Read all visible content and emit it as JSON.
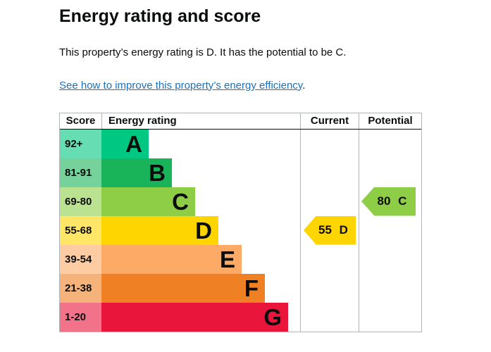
{
  "page": {
    "title": "Energy rating and score",
    "intro": "This property’s energy rating is D. It has the potential to be C.",
    "link_text": "See how to improve this property’s energy efficiency",
    "link_suffix": "."
  },
  "colors": {
    "text": "#0b0c0c",
    "link": "#1d70b8",
    "table_border": "#b1b4b6",
    "header_underline": "#0b0c0c"
  },
  "table": {
    "headers": [
      "Score",
      "Energy rating",
      "Current",
      "Potential"
    ]
  },
  "chart_data": {
    "type": "bar",
    "title": "Energy rating and score",
    "bands": [
      {
        "letter": "A",
        "score_range": "92+",
        "color": "#00c781"
      },
      {
        "letter": "B",
        "score_range": "81-91",
        "color": "#19b459"
      },
      {
        "letter": "C",
        "score_range": "69-80",
        "color": "#8dce46"
      },
      {
        "letter": "D",
        "score_range": "55-68",
        "color": "#ffd500"
      },
      {
        "letter": "E",
        "score_range": "39-54",
        "color": "#fcaa65"
      },
      {
        "letter": "F",
        "score_range": "21-38",
        "color": "#ef8023"
      },
      {
        "letter": "G",
        "score_range": "1-20",
        "color": "#e9153b"
      }
    ],
    "current": {
      "score": 55,
      "rating": "D",
      "label": "55 D",
      "color": "#ffd500"
    },
    "potential": {
      "score": 80,
      "rating": "C",
      "label": "80 C",
      "color": "#8dce46"
    }
  }
}
